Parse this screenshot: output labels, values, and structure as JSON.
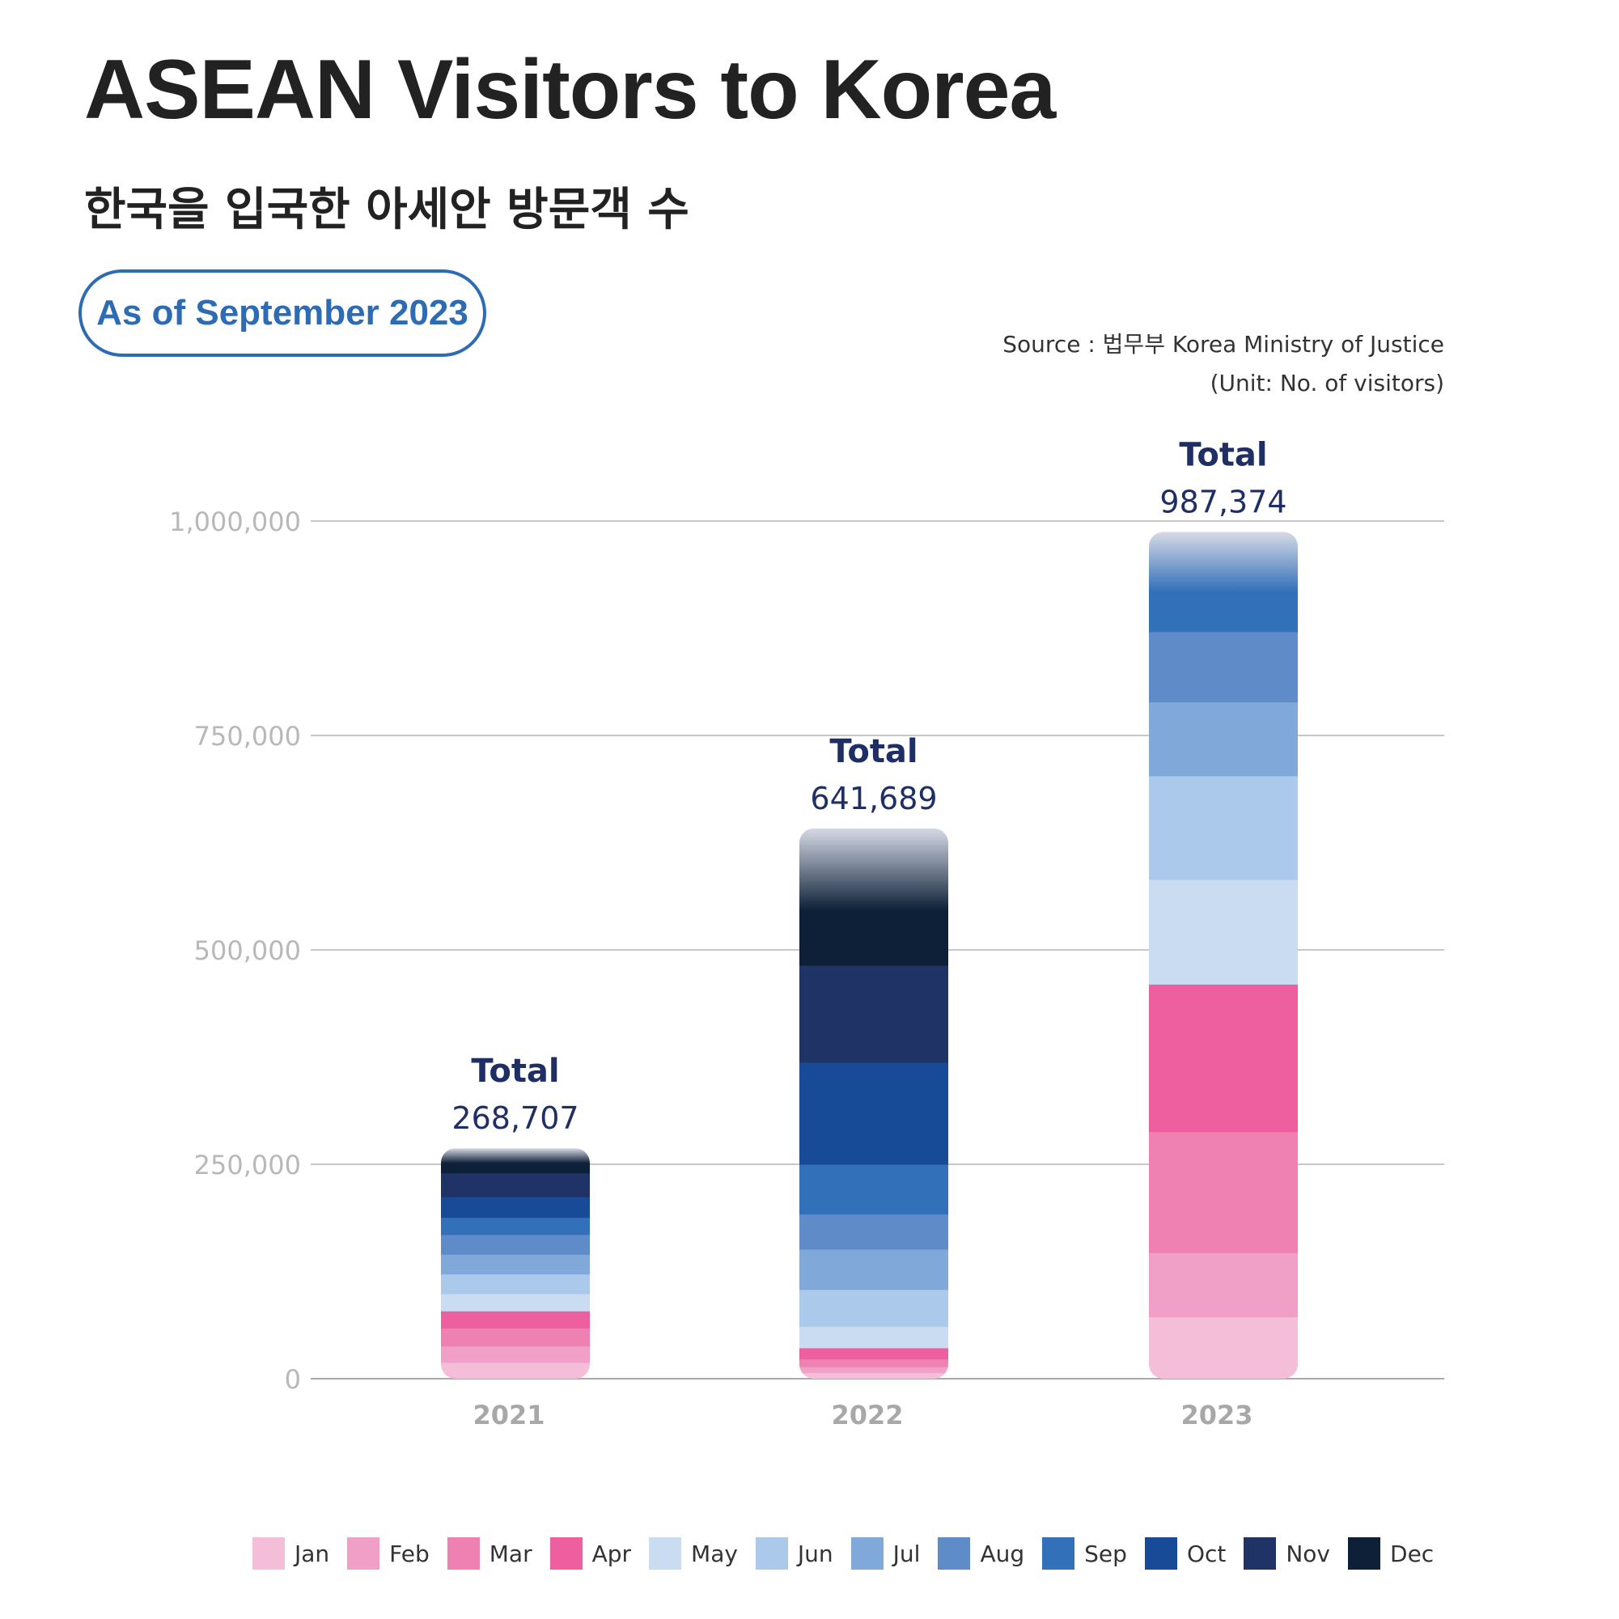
{
  "header": {
    "title": "ASEAN Visitors to Korea",
    "subtitle": "한국을 입국한 아세안 방문객 수",
    "badge": "As of September 2023",
    "source": "Source : 법무부 Korea Ministry of Justice",
    "unit": "(Unit: No. of visitors)"
  },
  "chart_data": {
    "type": "bar",
    "stacked": true,
    "title": "ASEAN Visitors to Korea",
    "categories": [
      "2021",
      "2022",
      "2023"
    ],
    "ylim": [
      0,
      1000000
    ],
    "yticks": [
      0,
      250000,
      500000,
      750000,
      1000000
    ],
    "ytick_labels": [
      "0",
      "250,000",
      "500,000",
      "750,000",
      "1,000,000"
    ],
    "grid": true,
    "legend_position": "bottom",
    "total_label": "Total",
    "totals": [
      268707,
      641689,
      987374
    ],
    "total_labels": [
      "268,707",
      "641,689",
      "987,374"
    ],
    "series": [
      {
        "name": "Jan",
        "color": "#f4bdd8",
        "values": [
          19000,
          7000,
          72000
        ]
      },
      {
        "name": "Feb",
        "color": "#f0a0c6",
        "values": [
          19000,
          7000,
          75000
        ]
      },
      {
        "name": "Mar",
        "color": "#ee80b2",
        "values": [
          21000,
          9000,
          141000
        ]
      },
      {
        "name": "Apr",
        "color": "#ee5fa0",
        "values": [
          20000,
          13000,
          172000
        ]
      },
      {
        "name": "May",
        "color": "#c9dcf2",
        "values": [
          20000,
          25000,
          122000
        ]
      },
      {
        "name": "Jun",
        "color": "#abc9ea",
        "values": [
          23000,
          43000,
          121000
        ]
      },
      {
        "name": "Jul",
        "color": "#80a9da",
        "values": [
          23000,
          47000,
          86000
        ]
      },
      {
        "name": "Aug",
        "color": "#5f8cc9",
        "values": [
          23000,
          41000,
          82000
        ]
      },
      {
        "name": "Sep",
        "color": "#3270b9",
        "values": [
          20000,
          58000,
          116289
        ]
      },
      {
        "name": "Oct",
        "color": "#174b97",
        "values": [
          24000,
          119000,
          0
        ]
      },
      {
        "name": "Nov",
        "color": "#203366",
        "values": [
          28000,
          113000,
          0
        ]
      },
      {
        "name": "Dec",
        "color": "#0d2037",
        "values": [
          28707,
          159689,
          0
        ]
      }
    ]
  }
}
